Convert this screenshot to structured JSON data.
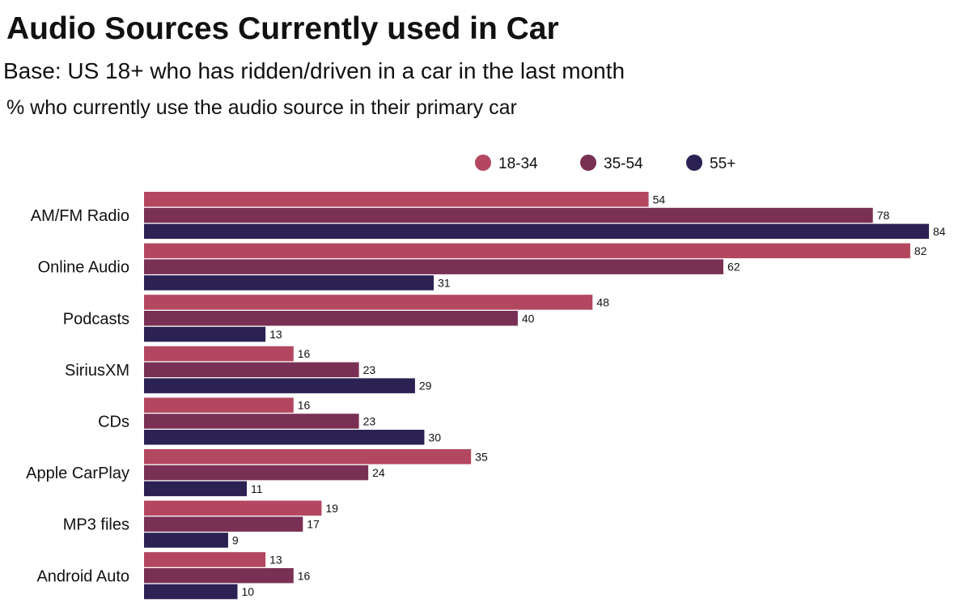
{
  "title": "Audio Sources Currently used in Car",
  "subtitle": "Base: US 18+ who has ridden/driven in a car in the last month",
  "note": "% who currently use the audio source in their primary car",
  "chart_data": {
    "type": "bar",
    "orientation": "horizontal",
    "categories": [
      "AM/FM Radio",
      "Online Audio",
      "Podcasts",
      "SiriusXM",
      "CDs",
      "Apple CarPlay",
      "MP3 files",
      "Android Auto"
    ],
    "series": [
      {
        "name": "18-34",
        "color": "#b34760",
        "values": [
          54,
          82,
          48,
          16,
          16,
          35,
          19,
          13
        ]
      },
      {
        "name": "35-54",
        "color": "#7a3055",
        "values": [
          78,
          62,
          40,
          23,
          23,
          24,
          17,
          16
        ]
      },
      {
        "name": "55+",
        "color": "#2b2152",
        "values": [
          84,
          31,
          13,
          29,
          30,
          11,
          9,
          10
        ]
      }
    ],
    "xlim": [
      0,
      84
    ],
    "grid": false,
    "legend_position": "top-right",
    "data_labels": true
  }
}
